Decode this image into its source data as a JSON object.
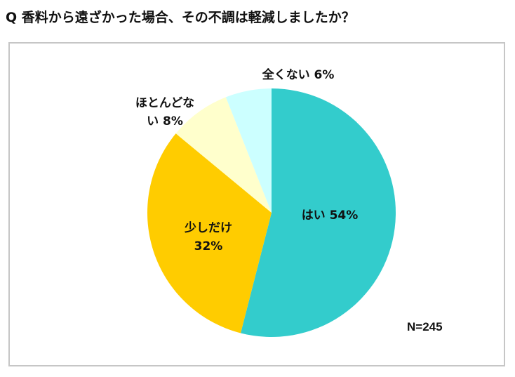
{
  "question": "Q 香料から遠ざかった場合、その不調は軽減しましたか？",
  "sample_size_label": "N=245",
  "chart_data": {
    "type": "pie",
    "title": "Q 香料から遠ざかった場合、その不調は軽減しましたか？",
    "slices": [
      {
        "label": "はい",
        "value": 54,
        "display_lines": [
          "はい 54%"
        ],
        "color": "#33cccc"
      },
      {
        "label": "少しだけ",
        "value": 32,
        "display_lines": [
          "少しだけ",
          "32%"
        ],
        "color": "#ffcc00"
      },
      {
        "label": "ほとんどない",
        "value": 8,
        "display_lines": [
          "ほとんどな",
          "い 8%"
        ],
        "color": "#ffffcc"
      },
      {
        "label": "全くない",
        "value": 6,
        "display_lines": [
          "全くない 6%"
        ],
        "color": "#ccffff"
      }
    ],
    "start_angle_deg": 0,
    "direction": "clockwise",
    "note": "N=245"
  }
}
